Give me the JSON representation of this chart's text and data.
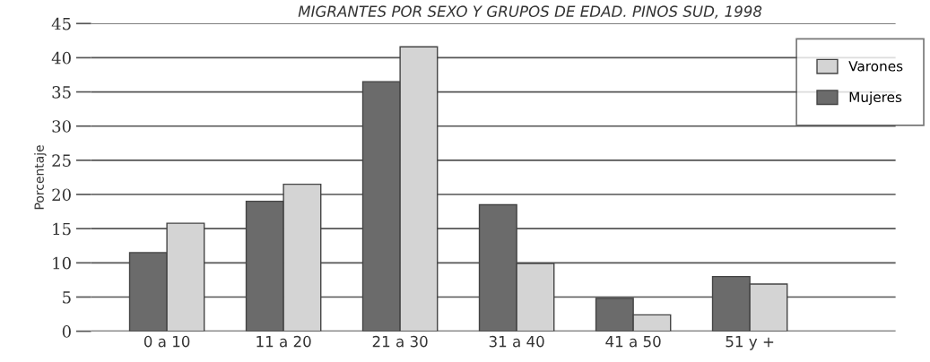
{
  "chart_data": {
    "type": "bar",
    "title": "MIGRANTES POR SEXO Y GRUPOS DE EDAD. PINOS SUD, 1998",
    "ylabel": "Porcentaje",
    "categories": [
      "0 a 10",
      "11 a 20",
      "21 a 30",
      "31 a 40",
      "41 a 50",
      "51 y +"
    ],
    "series": [
      {
        "name": "Mujeres",
        "color": "#6b6b6b",
        "values": [
          11.5,
          19,
          36.5,
          18.5,
          4.8,
          8
        ]
      },
      {
        "name": "Varones",
        "color": "#d4d4d4",
        "values": [
          15.8,
          21.5,
          41.6,
          9.9,
          2.4,
          6.9
        ]
      }
    ],
    "ylim": [
      0,
      45
    ],
    "yticks": [
      0,
      5,
      10,
      15,
      20,
      25,
      30,
      35,
      40,
      45
    ],
    "grid": "y",
    "legend": "top right"
  }
}
